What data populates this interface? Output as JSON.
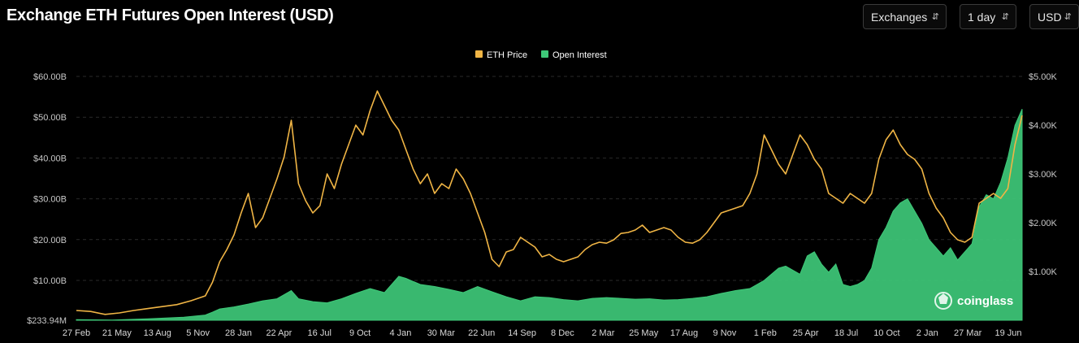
{
  "header": {
    "title": "Exchange ETH Futures Open Interest (USD)",
    "selects": [
      {
        "label": "Exchanges"
      },
      {
        "label": "1 day"
      },
      {
        "label": "USD"
      }
    ]
  },
  "brand": "coinglass",
  "colors": {
    "eth_price": "#f0b545",
    "open_interest": "#3ec878",
    "background": "#000000",
    "grid": "#2a2a2a"
  },
  "chart_data": {
    "type": "area",
    "title": "Exchange ETH Futures Open Interest (USD)",
    "legend": {
      "position": "top-center",
      "entries": [
        "ETH Price",
        "Open Interest"
      ]
    },
    "x_tick_labels": [
      "27 Feb",
      "21 May",
      "13 Aug",
      "5 Nov",
      "28 Jan",
      "22 Apr",
      "16 Jul",
      "9 Oct",
      "4 Jan",
      "30 Mar",
      "22 Jun",
      "14 Sep",
      "8 Dec",
      "2 Mar",
      "25 May",
      "17 Aug",
      "9 Nov",
      "1 Feb",
      "25 Apr",
      "18 Jul",
      "10 Oct",
      "2 Jan",
      "27 Mar",
      "19 Jun"
    ],
    "y_left": {
      "ticks": [
        "$233.94M",
        "$10.00B",
        "$20.00B",
        "$30.00B",
        "$40.00B",
        "$50.00B",
        "$60.00B"
      ],
      "min": 0.23394,
      "max": 60
    },
    "y_right": {
      "ticks": [
        "$1.00K",
        "$2.00K",
        "$3.00K",
        "$4.00K",
        "$5.00K"
      ],
      "min": 0,
      "max": 5000
    },
    "grid": true,
    "series": [
      {
        "name": "ETH Price",
        "axis": "right",
        "type": "line",
        "points": [
          [
            0,
            200
          ],
          [
            2,
            180
          ],
          [
            4,
            120
          ],
          [
            6,
            150
          ],
          [
            8,
            200
          ],
          [
            10,
            240
          ],
          [
            12,
            280
          ],
          [
            14,
            320
          ],
          [
            16,
            400
          ],
          [
            18,
            500
          ],
          [
            19,
            780
          ],
          [
            20,
            1200
          ],
          [
            21,
            1450
          ],
          [
            22,
            1750
          ],
          [
            23,
            2200
          ],
          [
            24,
            2600
          ],
          [
            25,
            1900
          ],
          [
            26,
            2100
          ],
          [
            27,
            2500
          ],
          [
            28,
            2900
          ],
          [
            29,
            3350
          ],
          [
            30,
            4100
          ],
          [
            31,
            2800
          ],
          [
            32,
            2450
          ],
          [
            33,
            2200
          ],
          [
            34,
            2350
          ],
          [
            35,
            3000
          ],
          [
            36,
            2700
          ],
          [
            37,
            3200
          ],
          [
            38,
            3600
          ],
          [
            39,
            4000
          ],
          [
            40,
            3800
          ],
          [
            41,
            4300
          ],
          [
            42,
            4700
          ],
          [
            43,
            4400
          ],
          [
            44,
            4100
          ],
          [
            45,
            3900
          ],
          [
            46,
            3500
          ],
          [
            47,
            3100
          ],
          [
            48,
            2800
          ],
          [
            49,
            3000
          ],
          [
            50,
            2600
          ],
          [
            51,
            2800
          ],
          [
            52,
            2700
          ],
          [
            53,
            3100
          ],
          [
            54,
            2900
          ],
          [
            55,
            2600
          ],
          [
            56,
            2200
          ],
          [
            57,
            1800
          ],
          [
            58,
            1250
          ],
          [
            59,
            1100
          ],
          [
            60,
            1400
          ],
          [
            61,
            1450
          ],
          [
            62,
            1700
          ],
          [
            63,
            1600
          ],
          [
            64,
            1500
          ],
          [
            65,
            1300
          ],
          [
            66,
            1350
          ],
          [
            67,
            1250
          ],
          [
            68,
            1200
          ],
          [
            69,
            1250
          ],
          [
            70,
            1300
          ],
          [
            71,
            1450
          ],
          [
            72,
            1550
          ],
          [
            73,
            1600
          ],
          [
            74,
            1580
          ],
          [
            75,
            1650
          ],
          [
            76,
            1780
          ],
          [
            77,
            1800
          ],
          [
            78,
            1850
          ],
          [
            79,
            1950
          ],
          [
            80,
            1800
          ],
          [
            81,
            1850
          ],
          [
            82,
            1900
          ],
          [
            83,
            1850
          ],
          [
            84,
            1700
          ],
          [
            85,
            1600
          ],
          [
            86,
            1580
          ],
          [
            87,
            1650
          ],
          [
            88,
            1800
          ],
          [
            89,
            2000
          ],
          [
            90,
            2200
          ],
          [
            91,
            2250
          ],
          [
            92,
            2300
          ],
          [
            93,
            2350
          ],
          [
            94,
            2600
          ],
          [
            95,
            3000
          ],
          [
            96,
            3800
          ],
          [
            97,
            3500
          ],
          [
            98,
            3200
          ],
          [
            99,
            3000
          ],
          [
            100,
            3400
          ],
          [
            101,
            3800
          ],
          [
            102,
            3600
          ],
          [
            103,
            3300
          ],
          [
            104,
            3100
          ],
          [
            105,
            2600
          ],
          [
            106,
            2500
          ],
          [
            107,
            2400
          ],
          [
            108,
            2600
          ],
          [
            109,
            2500
          ],
          [
            110,
            2400
          ],
          [
            111,
            2600
          ],
          [
            112,
            3300
          ],
          [
            113,
            3700
          ],
          [
            114,
            3900
          ],
          [
            115,
            3600
          ],
          [
            116,
            3400
          ],
          [
            117,
            3300
          ],
          [
            118,
            3100
          ],
          [
            119,
            2600
          ],
          [
            120,
            2300
          ],
          [
            121,
            2100
          ],
          [
            122,
            1800
          ],
          [
            123,
            1650
          ],
          [
            124,
            1600
          ],
          [
            125,
            1700
          ],
          [
            126,
            2400
          ],
          [
            127,
            2500
          ],
          [
            128,
            2600
          ],
          [
            129,
            2500
          ],
          [
            130,
            2700
          ],
          [
            131,
            3600
          ],
          [
            132,
            4200
          ]
        ]
      },
      {
        "name": "Open Interest",
        "axis": "left",
        "type": "area",
        "points": [
          [
            0,
            0.4
          ],
          [
            5,
            0.3
          ],
          [
            10,
            0.6
          ],
          [
            15,
            1.0
          ],
          [
            18,
            1.5
          ],
          [
            19,
            2.2
          ],
          [
            20,
            3.0
          ],
          [
            22,
            3.5
          ],
          [
            24,
            4.2
          ],
          [
            26,
            5.0
          ],
          [
            28,
            5.5
          ],
          [
            30,
            7.5
          ],
          [
            31,
            5.5
          ],
          [
            33,
            4.8
          ],
          [
            35,
            4.5
          ],
          [
            37,
            5.5
          ],
          [
            39,
            6.8
          ],
          [
            41,
            8.0
          ],
          [
            43,
            7.0
          ],
          [
            45,
            11.0
          ],
          [
            46,
            10.5
          ],
          [
            48,
            9.0
          ],
          [
            50,
            8.5
          ],
          [
            52,
            7.8
          ],
          [
            54,
            7.0
          ],
          [
            56,
            8.5
          ],
          [
            58,
            7.2
          ],
          [
            60,
            6.0
          ],
          [
            62,
            5.0
          ],
          [
            64,
            6.0
          ],
          [
            66,
            5.8
          ],
          [
            68,
            5.3
          ],
          [
            70,
            5.0
          ],
          [
            72,
            5.6
          ],
          [
            74,
            5.8
          ],
          [
            76,
            5.6
          ],
          [
            78,
            5.4
          ],
          [
            80,
            5.5
          ],
          [
            82,
            5.2
          ],
          [
            84,
            5.3
          ],
          [
            86,
            5.6
          ],
          [
            88,
            6.0
          ],
          [
            90,
            6.8
          ],
          [
            92,
            7.5
          ],
          [
            94,
            8.0
          ],
          [
            96,
            10.0
          ],
          [
            98,
            13.0
          ],
          [
            99,
            13.5
          ],
          [
            100,
            12.5
          ],
          [
            101,
            11.5
          ],
          [
            102,
            16.0
          ],
          [
            103,
            17.0
          ],
          [
            104,
            14.0
          ],
          [
            105,
            12.0
          ],
          [
            106,
            14.0
          ],
          [
            107,
            9.0
          ],
          [
            108,
            8.5
          ],
          [
            109,
            9.0
          ],
          [
            110,
            10.0
          ],
          [
            111,
            13.0
          ],
          [
            112,
            20.0
          ],
          [
            113,
            23.0
          ],
          [
            114,
            27.0
          ],
          [
            115,
            29.0
          ],
          [
            116,
            30.0
          ],
          [
            117,
            27.0
          ],
          [
            118,
            24.0
          ],
          [
            119,
            20.0
          ],
          [
            120,
            18.0
          ],
          [
            121,
            16.0
          ],
          [
            122,
            18.0
          ],
          [
            123,
            15.0
          ],
          [
            124,
            17.0
          ],
          [
            125,
            19.0
          ],
          [
            126,
            28.0
          ],
          [
            127,
            31.0
          ],
          [
            128,
            30.0
          ],
          [
            129,
            34.0
          ],
          [
            130,
            40.0
          ],
          [
            131,
            48.0
          ],
          [
            132,
            52.0
          ]
        ]
      }
    ]
  }
}
